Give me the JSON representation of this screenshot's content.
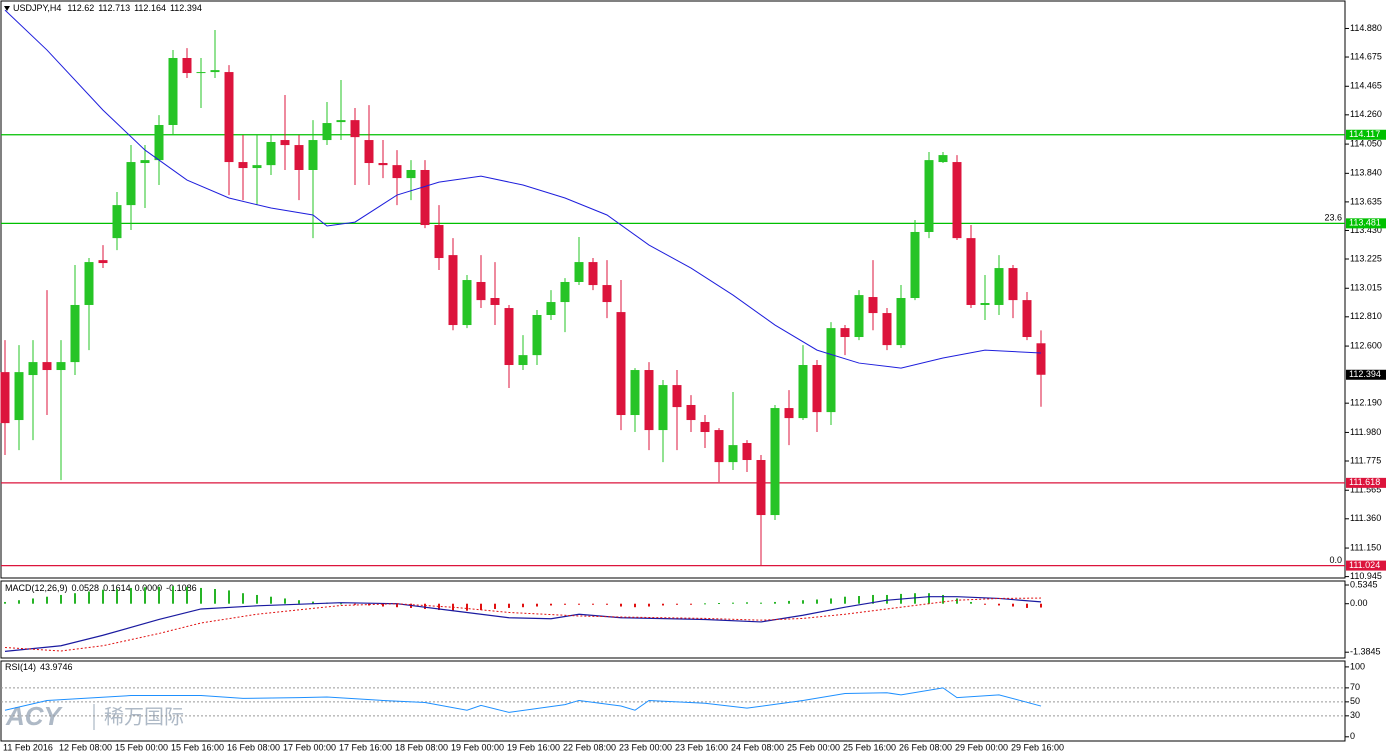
{
  "chart_data": [
    {
      "type": "candlestick",
      "symbol": "USDJPY,H4",
      "up_color": "#26c426",
      "down_color": "#dc143c",
      "ma_color": "#1e1edc",
      "ylim": [
        110.935,
        115.07
      ],
      "yticks": [
        {
          "value": 114.88,
          "label": "114.880"
        },
        114.675,
        114.465,
        {
          "value": 114.26,
          "label": "114.260"
        },
        {
          "value": 114.05,
          "label": "114.050"
        },
        {
          "value": 113.84,
          "label": "113.840"
        },
        113.635,
        {
          "value": 113.43,
          "label": "113.430"
        },
        113.225,
        113.015,
        {
          "value": 112.81,
          "label": "112.810"
        },
        {
          "value": 112.6,
          "label": "112.600"
        },
        {
          "value": 112.19,
          "label": "112.190"
        },
        {
          "value": 111.98,
          "label": "111.980"
        },
        111.775,
        111.565,
        {
          "value": 111.36,
          "label": "111.360"
        },
        {
          "value": 111.15,
          "label": "111.150"
        },
        110.945
      ],
      "categories": [
        "11 Feb 2016",
        null,
        null,
        null,
        "12 Feb 08:00",
        null,
        null,
        null,
        "15 Feb 00:00",
        null,
        null,
        null,
        "15 Feb 16:00",
        null,
        null,
        null,
        "16 Feb 08:00",
        null,
        null,
        null,
        "17 Feb 00:00",
        null,
        null,
        null,
        "17 Feb 16:00",
        null,
        null,
        null,
        "18 Feb 08:00",
        null,
        null,
        null,
        "19 Feb 00:00",
        null,
        null,
        null,
        "19 Feb 16:00",
        null,
        null,
        null,
        "22 Feb 08:00",
        null,
        null,
        null,
        "23 Feb 00:00",
        null,
        null,
        null,
        "23 Feb 16:00",
        null,
        null,
        null,
        "24 Feb 08:00",
        null,
        null,
        null,
        "25 Feb 00:00",
        null,
        null,
        null,
        "25 Feb 16:00",
        null,
        null,
        null,
        "26 Feb 08:00",
        null,
        null,
        null,
        "29 Feb 00:00",
        null,
        null,
        null,
        "29 Feb 16:00",
        null,
        null
      ],
      "candles": [
        [
          112.413,
          112.643,
          111.818,
          112.047
        ],
        [
          112.069,
          112.607,
          111.853,
          112.413
        ],
        [
          112.392,
          112.643,
          111.925,
          112.485
        ],
        [
          112.485,
          113.002,
          112.105,
          112.428
        ],
        [
          112.428,
          112.643,
          111.638,
          112.485
        ],
        [
          112.485,
          113.182,
          112.392,
          112.895
        ],
        [
          112.895,
          113.232,
          112.571,
          113.203
        ],
        [
          113.217,
          113.325,
          113.16,
          113.196
        ],
        [
          113.375,
          113.706,
          113.289,
          113.612
        ],
        [
          113.612,
          114.043,
          113.433,
          113.921
        ],
        [
          113.914,
          114.043,
          113.591,
          113.935
        ],
        [
          113.935,
          114.258,
          113.756,
          114.187
        ],
        [
          114.187,
          114.725,
          114.115,
          114.668
        ],
        [
          114.668,
          114.739,
          114.524,
          114.56
        ],
        [
          114.56,
          114.668,
          114.309,
          114.567
        ],
        [
          114.567,
          114.869,
          114.524,
          114.581
        ],
        [
          114.567,
          114.617,
          113.684,
          113.921
        ],
        [
          113.921,
          114.115,
          113.648,
          113.878
        ],
        [
          113.878,
          114.115,
          113.612,
          113.899
        ],
        [
          113.899,
          114.115,
          113.828,
          114.065
        ],
        [
          114.079,
          114.402,
          113.864,
          114.043
        ],
        [
          114.043,
          114.115,
          113.648,
          113.864
        ],
        [
          113.864,
          114.222,
          113.375,
          114.079
        ],
        [
          114.079,
          114.352,
          114.043,
          114.201
        ],
        [
          114.208,
          114.51,
          114.079,
          114.222
        ],
        [
          114.222,
          114.309,
          113.756,
          114.1
        ],
        [
          114.079,
          114.33,
          113.756,
          113.914
        ],
        [
          113.914,
          114.079,
          113.806,
          113.899
        ],
        [
          113.899,
          114.007,
          113.612,
          113.806
        ],
        [
          113.806,
          113.935,
          113.648,
          113.864
        ],
        [
          113.864,
          113.935,
          113.447,
          113.469
        ],
        [
          113.469,
          113.612,
          113.146,
          113.232
        ],
        [
          113.253,
          113.375,
          112.714,
          112.751
        ],
        [
          112.751,
          113.11,
          112.729,
          113.074
        ],
        [
          113.06,
          113.253,
          112.873,
          112.93
        ],
        [
          112.945,
          113.203,
          112.751,
          112.895
        ],
        [
          112.873,
          112.895,
          112.299,
          112.464
        ],
        [
          112.464,
          112.679,
          112.428,
          112.535
        ],
        [
          112.535,
          112.859,
          112.464,
          112.823
        ],
        [
          112.823,
          113.002,
          112.787,
          112.916
        ],
        [
          112.916,
          113.088,
          112.7,
          113.06
        ],
        [
          113.06,
          113.383,
          113.038,
          113.203
        ],
        [
          113.203,
          113.232,
          113.002,
          113.038
        ],
        [
          113.038,
          113.217,
          112.801,
          112.916
        ],
        [
          112.844,
          113.074,
          111.997,
          112.105
        ],
        [
          112.105,
          112.442,
          111.983,
          112.428
        ],
        [
          112.428,
          112.485,
          111.853,
          111.997
        ],
        [
          111.997,
          112.356,
          111.767,
          112.32
        ],
        [
          112.32,
          112.428,
          111.853,
          112.162
        ],
        [
          112.177,
          112.248,
          111.983,
          112.069
        ],
        [
          112.055,
          112.105,
          111.868,
          111.983
        ],
        [
          111.997,
          112.011,
          111.624,
          111.767
        ],
        [
          111.767,
          112.27,
          111.71,
          111.889
        ],
        [
          111.904,
          111.925,
          111.696,
          111.782
        ],
        [
          111.782,
          111.818,
          111.028,
          111.387
        ],
        [
          111.387,
          112.177,
          111.351,
          112.155
        ],
        [
          112.155,
          112.284,
          111.889,
          112.083
        ],
        [
          112.083,
          112.607,
          112.069,
          112.464
        ],
        [
          112.464,
          112.5,
          111.983,
          112.126
        ],
        [
          112.126,
          112.772,
          112.033,
          112.729
        ],
        [
          112.729,
          112.751,
          112.535,
          112.665
        ],
        [
          112.665,
          113.002,
          112.643,
          112.966
        ],
        [
          112.952,
          113.217,
          112.714,
          112.837
        ],
        [
          112.837,
          112.873,
          112.571,
          112.607
        ],
        [
          112.607,
          113.038,
          112.586,
          112.945
        ],
        [
          112.945,
          113.505,
          112.93,
          113.419
        ],
        [
          113.419,
          113.993,
          113.375,
          113.935
        ],
        [
          113.921,
          113.993,
          113.914,
          113.971
        ],
        [
          113.921,
          113.971,
          113.361,
          113.375
        ],
        [
          113.375,
          113.469,
          112.873,
          112.895
        ],
        [
          112.895,
          113.11,
          112.787,
          112.909
        ],
        [
          112.895,
          113.253,
          112.823,
          113.16
        ],
        [
          113.16,
          113.182,
          112.801,
          112.93
        ],
        [
          112.93,
          112.988,
          112.643,
          112.665
        ],
        [
          112.62,
          112.713,
          112.164,
          112.394
        ]
      ],
      "ma": {
        "x": [
          0,
          3,
          7,
          10,
          13,
          16,
          19,
          22,
          23,
          25,
          28,
          31,
          34,
          37,
          40,
          43,
          46,
          49,
          52,
          55,
          58,
          61,
          64,
          67,
          70,
          74
        ],
        "values": [
          115.012,
          114.725,
          114.294,
          114.007,
          113.792,
          113.663,
          113.591,
          113.541,
          113.462,
          113.49,
          113.684,
          113.777,
          113.82,
          113.756,
          113.663,
          113.541,
          113.325,
          113.16,
          112.966,
          112.751,
          112.571,
          112.478,
          112.442,
          112.514,
          112.571,
          112.55
        ]
      },
      "levels": [
        {
          "value": 114.117,
          "color": "#00c000"
        },
        {
          "value": 113.481,
          "color": "#00c000",
          "fib": "23.6"
        },
        {
          "value": 111.618,
          "color": "#dc143c"
        },
        {
          "value": 111.024,
          "color": "#dc143c",
          "fib": "0.0"
        }
      ]
    },
    {
      "type": "macd",
      "label": "MACD(12,26,9)",
      "third_value": {
        "value": 0,
        "label": "0.0000"
      },
      "ylim": [
        -1.55,
        0.62
      ],
      "yticks": [
        0.5345,
        {
          "value": 0,
          "label": "0.00"
        },
        -1.3845
      ],
      "up_color": "#26b426",
      "down_color": "#e01010",
      "line_color": "#1a1aa0",
      "signal_color": "#e01010",
      "histogram": [
        0.05,
        0.1,
        0.15,
        0.2,
        0.25,
        0.3,
        0.35,
        0.4,
        0.42,
        0.45,
        0.47,
        0.48,
        0.5,
        0.48,
        0.45,
        0.42,
        0.38,
        0.3,
        0.25,
        0.2,
        0.15,
        0.1,
        0.06,
        0.03,
        0.01,
        -0.02,
        -0.05,
        -0.08,
        -0.1,
        -0.12,
        -0.15,
        -0.18,
        -0.2,
        -0.2,
        -0.18,
        -0.15,
        -0.12,
        -0.1,
        -0.08,
        -0.05,
        -0.03,
        -0.02,
        -0.01,
        -0.03,
        -0.08,
        -0.1,
        -0.08,
        -0.05,
        -0.03,
        -0.01,
        0.01,
        0.02,
        0.03,
        0.04,
        0.03,
        0.05,
        0.08,
        0.1,
        0.12,
        0.15,
        0.2,
        0.22,
        0.25,
        0.25,
        0.28,
        0.3,
        0.3,
        0.25,
        0.15,
        0.05,
        -0.02,
        -0.05,
        -0.08,
        -0.12,
        -0.1086
      ],
      "macd": {
        "x": [
          0,
          4,
          7,
          11,
          14,
          18,
          24,
          28,
          32,
          36,
          39,
          41,
          44,
          50,
          54,
          57,
          60,
          63,
          66,
          68,
          71,
          74
        ],
        "values": [
          -1.36,
          -1.2,
          -0.9,
          -0.45,
          -0.15,
          -0.06,
          0.03,
          0,
          -0.2,
          -0.4,
          -0.43,
          -0.3,
          -0.4,
          -0.45,
          -0.52,
          -0.33,
          -0.1,
          0.1,
          0.2,
          0.2,
          0.15,
          0.0528
        ]
      },
      "signal": {
        "x": [
          0,
          4,
          7,
          11,
          14,
          18,
          24,
          28,
          32,
          36,
          41,
          44,
          50,
          54,
          57,
          60,
          63,
          66,
          68,
          71,
          74
        ],
        "values": [
          -1.25,
          -1.35,
          -1.2,
          -0.85,
          -0.55,
          -0.3,
          -0.05,
          0,
          -0.1,
          -0.25,
          -0.35,
          -0.38,
          -0.42,
          -0.47,
          -0.42,
          -0.3,
          -0.15,
          0,
          0.1,
          0.15,
          0.1614
        ]
      }
    },
    {
      "type": "line",
      "label": "RSI(14)",
      "color": "#1e90ff",
      "ylim": [
        -6,
        107
      ],
      "yticks": [
        100,
        70,
        50,
        30,
        0
      ],
      "levels": [
        70,
        50,
        30
      ],
      "x": [
        0,
        3,
        9,
        14,
        17,
        21,
        23,
        27,
        30,
        33,
        34,
        36,
        40,
        41,
        44,
        45,
        46,
        50,
        53,
        57,
        60,
        63,
        64,
        67,
        68,
        71,
        74
      ],
      "values": [
        38,
        52,
        59,
        59,
        55,
        56,
        57,
        52,
        49,
        38,
        45,
        35,
        46,
        52,
        44,
        38,
        52,
        48,
        41,
        52,
        62,
        63,
        60,
        70,
        56,
        60,
        43.9746
      ]
    }
  ],
  "watermark": {
    "brand": "ACY",
    "name": "稀万国际"
  }
}
